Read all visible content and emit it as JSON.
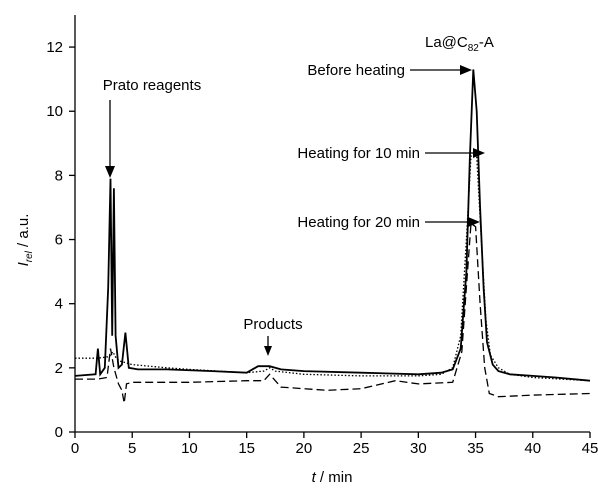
{
  "chart_data": {
    "type": "line",
    "x_label": {
      "symbol": "t",
      "unit": " / min"
    },
    "y_label": {
      "symbol": "I",
      "subscript": "rel",
      "unit": " / a.u."
    },
    "annotations": {
      "reagents": "Prato reagents",
      "products": "Products",
      "before": "Before heating",
      "heat10": "Heating for 10 min",
      "heat20": "Heating for 20 min",
      "compound": {
        "main": "La@C",
        "subscript": "82",
        "suffix": "-A"
      }
    },
    "xlim": [
      0,
      45
    ],
    "xticks": [
      0,
      5,
      10,
      15,
      20,
      25,
      30,
      35,
      40,
      45
    ],
    "ylim": [
      0,
      13
    ],
    "yticks": [
      0,
      2,
      4,
      6,
      8,
      10,
      12
    ],
    "series": [
      {
        "color": "#000000",
        "dash": "solid",
        "x": [
          0,
          1.8,
          2,
          2.2,
          2.6,
          2.9,
          3.1,
          3.25,
          3.4,
          3.55,
          3.8,
          4.1,
          4.4,
          4.7,
          5.5,
          8,
          12,
          15,
          16,
          17,
          18,
          20,
          25,
          30,
          32,
          33,
          33.7,
          34.2,
          34.5,
          34.8,
          35.1,
          35.4,
          35.7,
          36,
          36.5,
          37,
          38,
          40,
          42,
          45
        ],
        "values": [
          1.75,
          1.8,
          2.6,
          1.8,
          2.0,
          4.5,
          7.9,
          3.0,
          7.6,
          3.0,
          2.0,
          2.1,
          3.1,
          2.0,
          1.95,
          1.95,
          1.9,
          1.85,
          2.05,
          2.05,
          1.95,
          1.9,
          1.85,
          1.8,
          1.85,
          1.95,
          2.6,
          5.0,
          8.5,
          11.3,
          10.0,
          7.0,
          4.5,
          2.8,
          2.1,
          1.9,
          1.8,
          1.75,
          1.7,
          1.6
        ]
      },
      {
        "color": "#000000",
        "dash": "dotted",
        "x": [
          0,
          2,
          3,
          3.3,
          3.6,
          4,
          5,
          8,
          10,
          15,
          16.5,
          17,
          17.5,
          20,
          25,
          30,
          32,
          33,
          33.7,
          34.2,
          34.6,
          35.1,
          35.5,
          35.9,
          36.3,
          37,
          38,
          40,
          45
        ],
        "values": [
          2.3,
          2.3,
          2.35,
          2.5,
          2.3,
          2.2,
          2.1,
          2.0,
          1.95,
          1.85,
          1.9,
          2.0,
          1.9,
          1.8,
          1.75,
          1.75,
          1.8,
          2.0,
          3.0,
          6.0,
          8.6,
          8.6,
          6.0,
          3.5,
          2.4,
          2.0,
          1.8,
          1.7,
          1.6
        ]
      },
      {
        "color": "#000000",
        "dash": "dashed",
        "x": [
          0,
          2,
          2.8,
          3.1,
          3.4,
          3.8,
          4.1,
          4.3,
          4.5,
          5,
          10,
          15,
          16.5,
          17,
          17.5,
          18,
          22,
          25,
          28,
          30,
          33,
          33.8,
          34.3,
          34.6,
          35,
          35.4,
          35.8,
          36.2,
          37,
          40,
          45
        ],
        "values": [
          1.65,
          1.65,
          1.7,
          2.6,
          2.0,
          1.5,
          1.3,
          0.9,
          1.5,
          1.55,
          1.55,
          1.6,
          1.6,
          1.8,
          1.6,
          1.4,
          1.3,
          1.35,
          1.6,
          1.5,
          1.55,
          2.5,
          5.0,
          6.5,
          6.4,
          4.0,
          2.0,
          1.2,
          1.1,
          1.15,
          1.2
        ]
      }
    ]
  }
}
